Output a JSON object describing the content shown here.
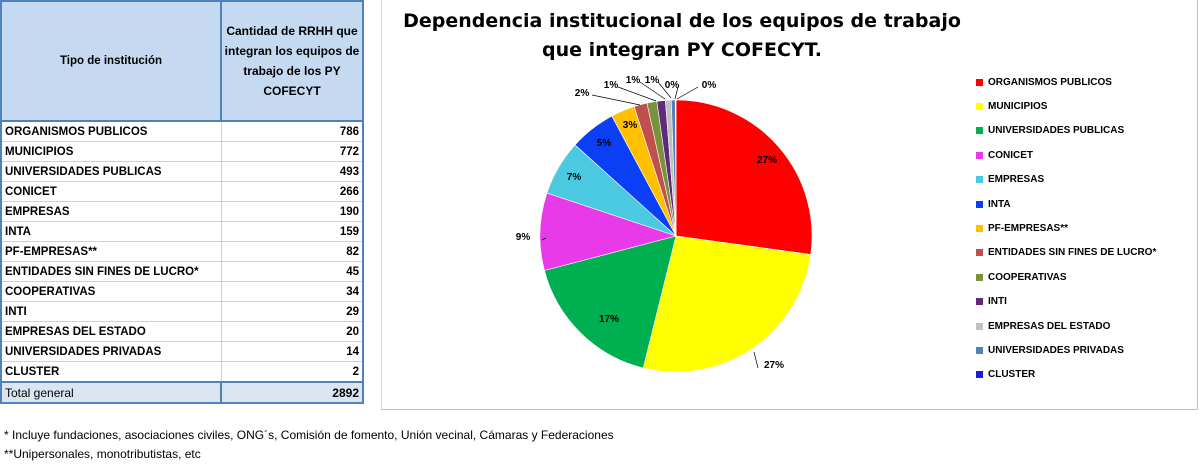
{
  "table": {
    "header": {
      "col1": "Tipo de institución",
      "col2": "Cantidad de RRHH que integran los equipos de trabajo de los PY COFECYT"
    },
    "rows": [
      {
        "label": "ORGANISMOS PUBLICOS",
        "value": "786"
      },
      {
        "label": "MUNICIPIOS",
        "value": "772"
      },
      {
        "label": "UNIVERSIDADES PUBLICAS",
        "value": "493"
      },
      {
        "label": "CONICET",
        "value": "266"
      },
      {
        "label": "EMPRESAS",
        "value": "190"
      },
      {
        "label": "INTA",
        "value": "159"
      },
      {
        "label": "PF-EMPRESAS**",
        "value": "82"
      },
      {
        "label": "ENTIDADES SIN FINES DE LUCRO*",
        "value": "45"
      },
      {
        "label": "COOPERATIVAS",
        "value": "34"
      },
      {
        "label": "INTI",
        "value": "29"
      },
      {
        "label": "EMPRESAS DEL ESTADO",
        "value": "20"
      },
      {
        "label": "UNIVERSIDADES PRIVADAS",
        "value": "14"
      },
      {
        "label": "CLUSTER",
        "value": "2"
      }
    ],
    "total": {
      "label": "Total general",
      "value": "2892"
    }
  },
  "chart_data": {
    "type": "pie",
    "title": "Dependencia institucional de los equipos de trabajo que integran PY COFECYT.",
    "legend_position": "right",
    "categories": [
      "ORGANISMOS PUBLICOS",
      "MUNICIPIOS",
      "UNIVERSIDADES PUBLICAS",
      "CONICET",
      "EMPRESAS",
      "INTA",
      "PF-EMPRESAS**",
      "ENTIDADES SIN FINES DE LUCRO*",
      "COOPERATIVAS",
      "INTI",
      "EMPRESAS DEL ESTADO",
      "UNIVERSIDADES PRIVADAS",
      "CLUSTER"
    ],
    "values": [
      786,
      772,
      493,
      266,
      190,
      159,
      82,
      45,
      34,
      29,
      20,
      14,
      2
    ],
    "data_labels": [
      "27%",
      "27%",
      "17%",
      "9%",
      "7%",
      "5%",
      "3%",
      "2%",
      "1%",
      "1%",
      "1%",
      "0%",
      "0%"
    ],
    "colors": [
      "#ff0000",
      "#ffff00",
      "#00b050",
      "#e83ae8",
      "#4bc9e0",
      "#0b3ff5",
      "#ffc000",
      "#c0504d",
      "#77933c",
      "#5f2a7a",
      "#c0c0c0",
      "#4f81bd",
      "#1c1cd8"
    ]
  },
  "notes": [
    "* Incluye fundaciones, asociaciones civiles, ONG´s, Comisión de fomento, Unión vecinal, Cámaras y Federaciones",
    "**Unipersonales, monotributistas, etc"
  ]
}
